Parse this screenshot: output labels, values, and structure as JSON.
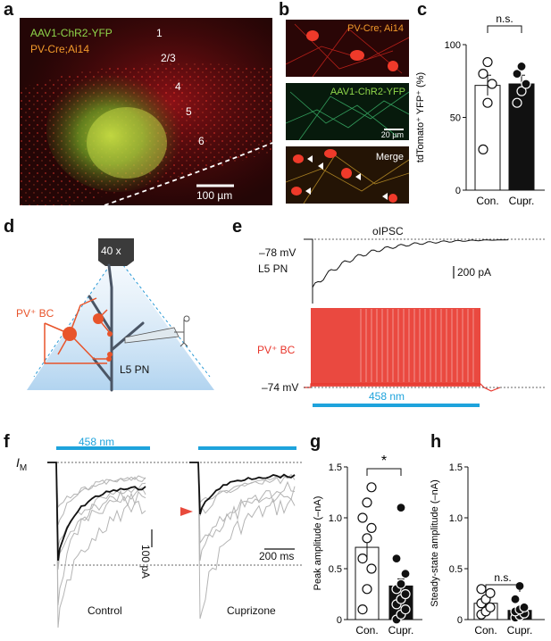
{
  "panels": {
    "a": {
      "label": "a",
      "legend_chr2": "AAV1-ChR2-YFP",
      "legend_pv": "PV-Cre;Ai14",
      "layers": [
        "1",
        "2/3",
        "4",
        "5",
        "6"
      ],
      "scalebar": "100 µm"
    },
    "b": {
      "label": "b",
      "top": "PV-Cre; Ai14",
      "middle": "AAV1-ChR2-YFP",
      "scalebar": "20 µm",
      "bottom": "Merge"
    },
    "c": {
      "label": "c"
    },
    "d": {
      "label": "d",
      "objective": "40 x",
      "pv_bc": "PV⁺ BC",
      "l5_pn": "L5 PN"
    },
    "e": {
      "label": "e",
      "title": "oIPSC",
      "pn_vm": "–78 mV",
      "pn_label": "L5 PN",
      "scale": "200 pA",
      "bc_label": "PV⁺ BC",
      "bc_vm": "–74 mV",
      "stim": "458 nm"
    },
    "f": {
      "label": "f",
      "stim": "458 nm",
      "im_main": "I",
      "im_sub": "M",
      "scale_y": "100 pA",
      "scale_x": "200 ms",
      "control": "Control",
      "cuprizone": "Cuprizone"
    },
    "g": {
      "label": "g"
    },
    "h": {
      "label": "h"
    }
  },
  "colors": {
    "stim_blue": "#1ea3dc",
    "pv_red": "#e8352b",
    "arrow_red": "#e84a3c",
    "trace_gray": "#b4b4b4"
  },
  "chart_data": [
    {
      "panel": "c",
      "type": "bar",
      "categories": [
        "Con.",
        "Cupr."
      ],
      "values": [
        72,
        73
      ],
      "errors": [
        7,
        6
      ],
      "points": [
        [
          28,
          60,
          73,
          80,
          88
        ],
        [
          60,
          68,
          73,
          80,
          85
        ]
      ],
      "ylabel": "tdTomato⁺ YFP⁺ (%)",
      "ylim": [
        0,
        100
      ],
      "yticks": [
        0,
        50,
        100
      ],
      "significance": "n.s.",
      "bar_fill": [
        "#ffffff",
        "#111111"
      ]
    },
    {
      "panel": "g",
      "type": "bar",
      "categories": [
        "Con.",
        "Cupr."
      ],
      "values": [
        0.71,
        0.33
      ],
      "errors": [
        0.12,
        0.07
      ],
      "points": [
        [
          0.1,
          0.3,
          0.5,
          0.6,
          0.8,
          0.9,
          1.0,
          1.15,
          1.3
        ],
        [
          0.0,
          0.05,
          0.1,
          0.15,
          0.2,
          0.25,
          0.3,
          0.35,
          0.45,
          0.6,
          1.1
        ]
      ],
      "ylabel": "Peak amplitude (–nA)",
      "ylim": [
        0,
        1.5
      ],
      "yticks": [
        0,
        0.5,
        1.0,
        1.5
      ],
      "significance": "*",
      "bar_fill": [
        "#ffffff",
        "#111111"
      ]
    },
    {
      "panel": "h",
      "type": "bar",
      "categories": [
        "Con.",
        "Cupr."
      ],
      "values": [
        0.16,
        0.09
      ],
      "errors": [
        0.04,
        0.03
      ],
      "points": [
        [
          0.05,
          0.08,
          0.12,
          0.16,
          0.2,
          0.26,
          0.3
        ],
        [
          0.02,
          0.04,
          0.06,
          0.08,
          0.1,
          0.12,
          0.2,
          0.33
        ]
      ],
      "ylabel": "Steady-state amplitude (–nA)",
      "ylim": [
        0,
        1.5
      ],
      "yticks": [
        0,
        0.5,
        1.0,
        1.5
      ],
      "significance": "n.s.",
      "bar_fill": [
        "#ffffff",
        "#111111"
      ]
    }
  ]
}
